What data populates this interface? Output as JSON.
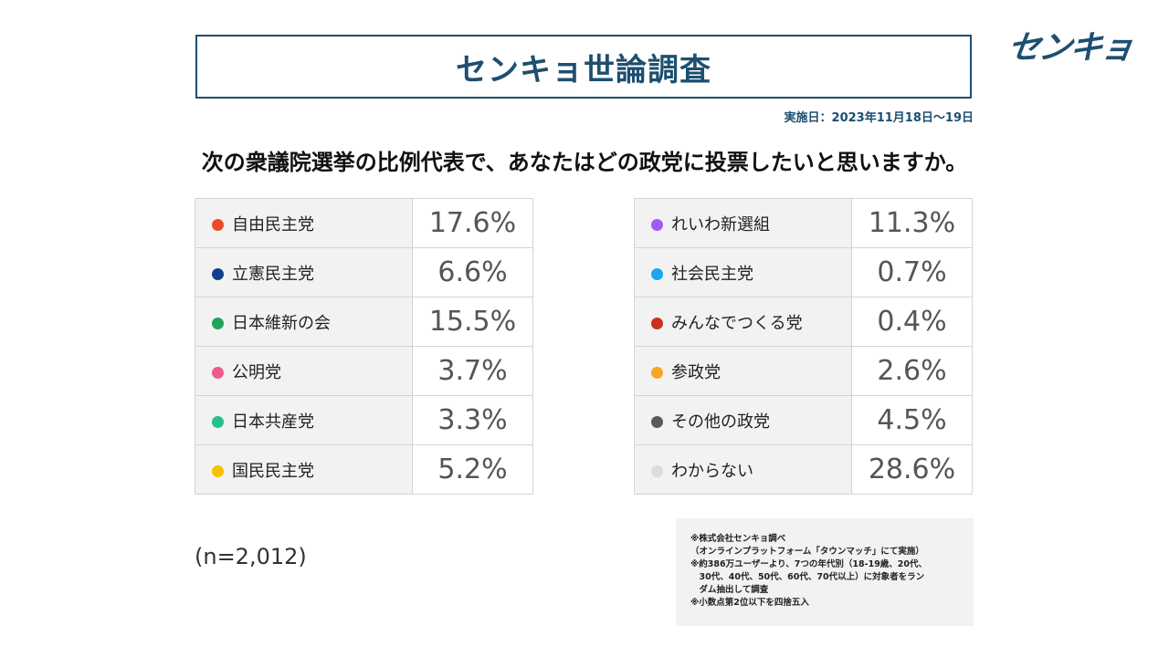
{
  "header": {
    "title": "センキョ世論調査",
    "logo_text": "センキョ",
    "date": "実施日：2023年11月18日～19日",
    "question": "次の衆議院選挙の比例代表で、あなたはどの政党に投票したいと思いますか。"
  },
  "chart_data": {
    "type": "table",
    "title": "センキョ世論調査",
    "question": "次の衆議院選挙の比例代表で、あなたはどの政党に投票したいと思いますか。",
    "unit": "%",
    "sample_size": "(n=2,012)",
    "left_column": [
      {
        "party": "自由民主党",
        "value": 17.6,
        "label": "17.6%",
        "color": "#ea4a2a"
      },
      {
        "party": "立憲民主党",
        "value": 6.6,
        "label": "6.6%",
        "color": "#123f8c"
      },
      {
        "party": "日本維新の会",
        "value": 15.5,
        "label": "15.5%",
        "color": "#1fa55a"
      },
      {
        "party": "公明党",
        "value": 3.7,
        "label": "3.7%",
        "color": "#ee5a8a"
      },
      {
        "party": "日本共産党",
        "value": 3.3,
        "label": "3.3%",
        "color": "#27c08a"
      },
      {
        "party": "国民民主党",
        "value": 5.2,
        "label": "5.2%",
        "color": "#f6c200"
      }
    ],
    "right_column": [
      {
        "party": "れいわ新選組",
        "value": 11.3,
        "label": "11.3%",
        "color": "#a15bf0"
      },
      {
        "party": "社会民主党",
        "value": 0.7,
        "label": "0.7%",
        "color": "#1ea3ef"
      },
      {
        "party": "みんなでつくる党",
        "value": 0.4,
        "label": "0.4%",
        "color": "#c9301e"
      },
      {
        "party": "参政党",
        "value": 2.6,
        "label": "2.6%",
        "color": "#f5a623"
      },
      {
        "party": "その他の政党",
        "value": 4.5,
        "label": "4.5%",
        "color": "#5a5a5a"
      },
      {
        "party": "わからない",
        "value": 28.6,
        "label": "28.6%",
        "color": "#dcdcdc"
      }
    ]
  },
  "notes": [
    "※株式会社センキョ調べ",
    "（オンラインプラットフォーム「タウンマッチ」にて実施）",
    "※約386万ユーザーより、7つの年代別（18-19歳、20代、",
    "　30代、40代、50代、60代、70代以上）に対象者をラン",
    "　ダム抽出して調査",
    "※小数点第2位以下を四捨五入"
  ]
}
